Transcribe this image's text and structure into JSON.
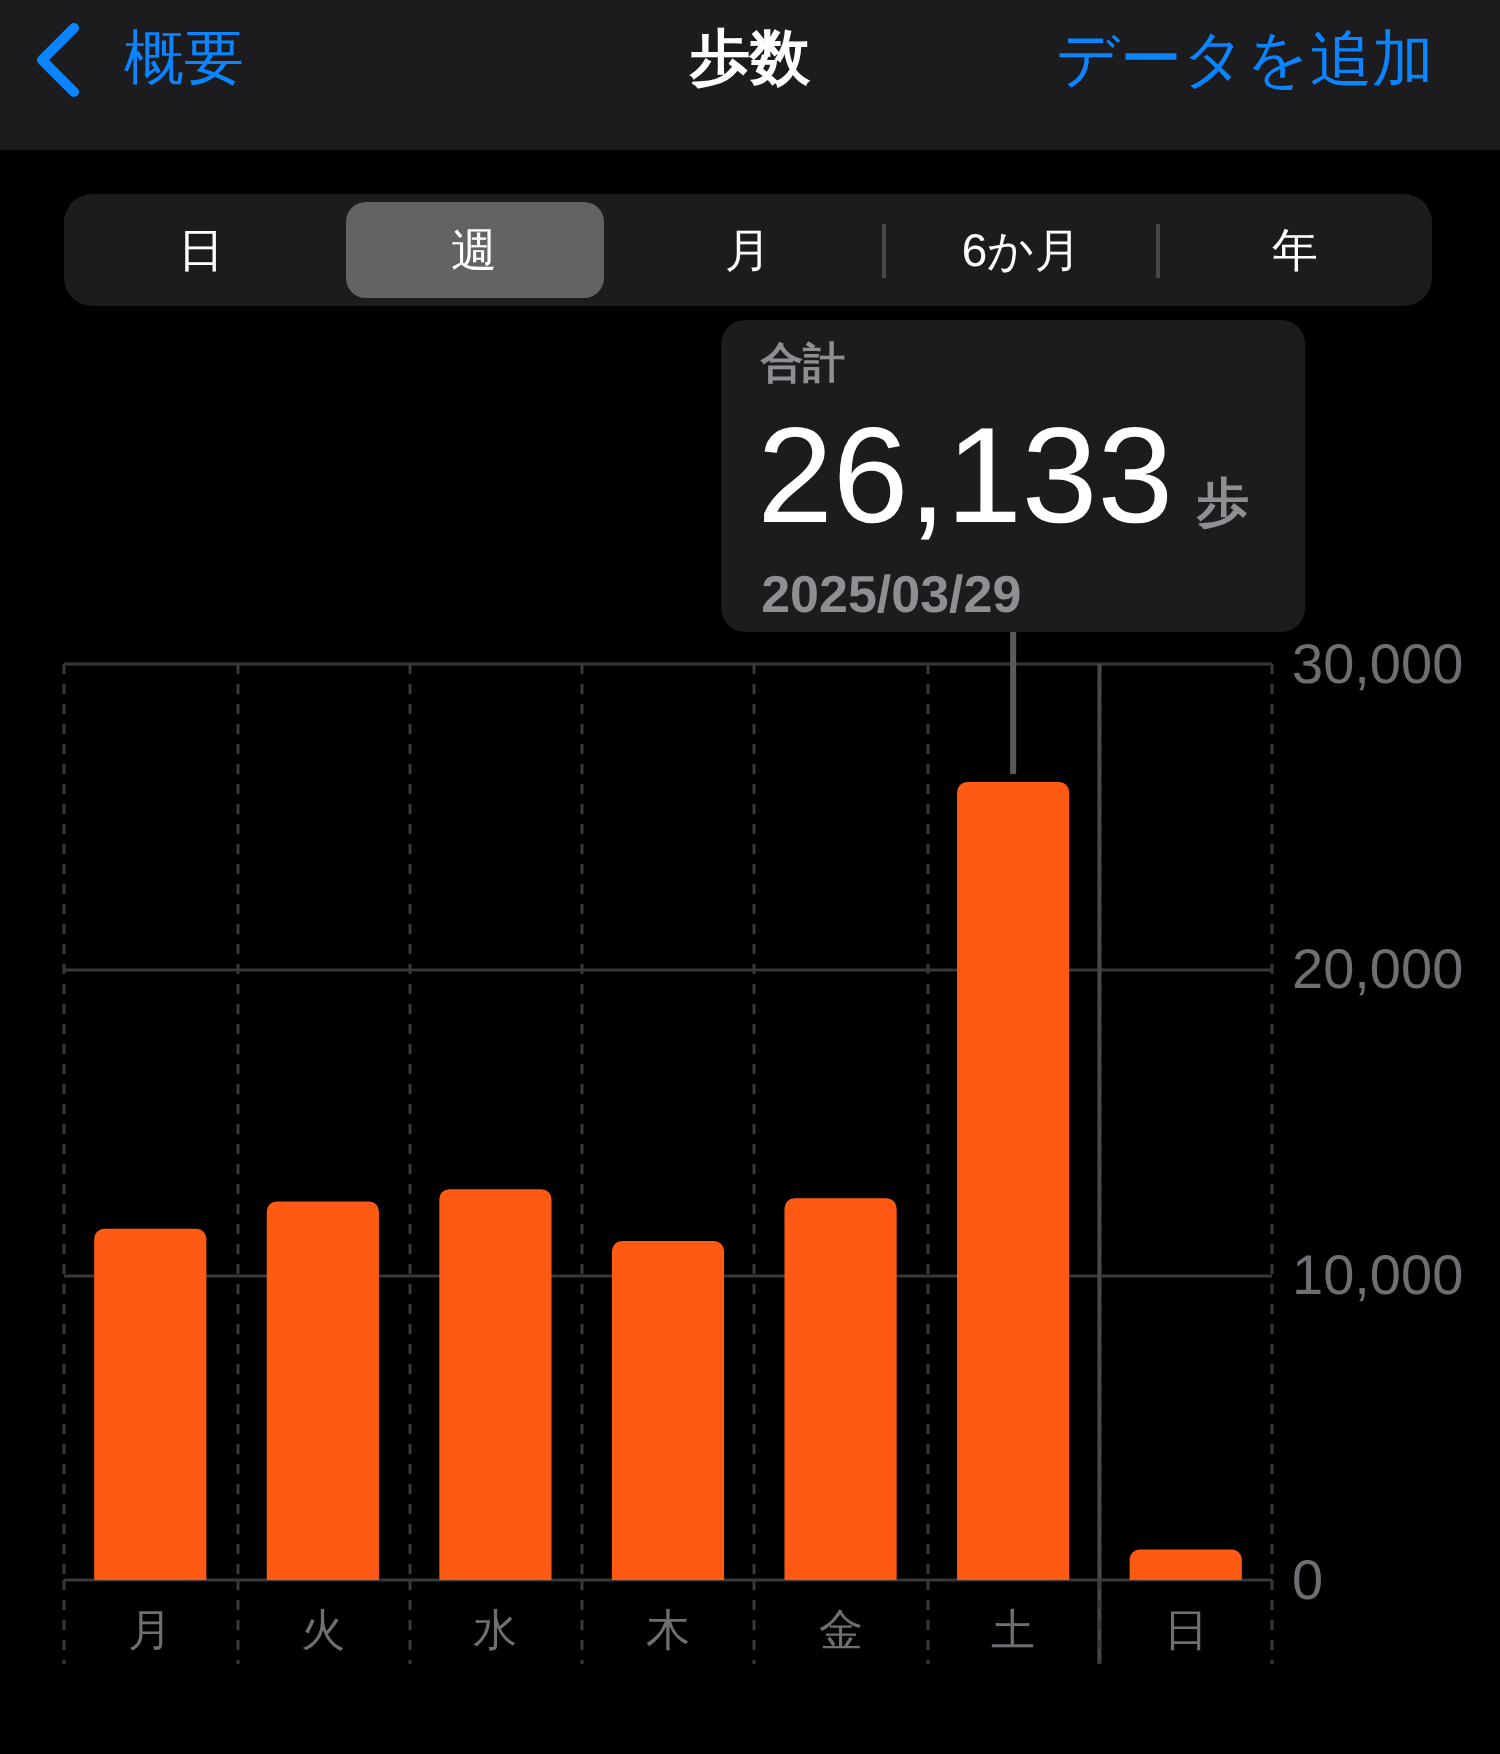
{
  "chart_data": {
    "type": "bar",
    "title": "歩数",
    "categories": [
      "月",
      "火",
      "水",
      "木",
      "金",
      "土",
      "日"
    ],
    "values": [
      11500,
      12400,
      12800,
      11100,
      12500,
      26133,
      1000
    ],
    "color": "#fe5a14",
    "ylim": [
      0,
      30000
    ],
    "yticks": [
      0,
      {
        "value": 10000,
        "label": "10,000"
      },
      {
        "value": 20000,
        "label": "20,000"
      },
      {
        "value": 30000,
        "label": "30,000"
      }
    ],
    "grid": true,
    "ref_lines": [
      {
        "axis": "x",
        "value": "日",
        "line_style": "solid",
        "color": "#48484a"
      }
    ],
    "annotations": [
      "概要",
      "データを追加",
      "日",
      "週",
      "月",
      "6か月",
      "年",
      "合計",
      {
        "text": "26,133",
        "x": "土",
        "y": 26133
      },
      "歩",
      "2025/03/29"
    ]
  }
}
